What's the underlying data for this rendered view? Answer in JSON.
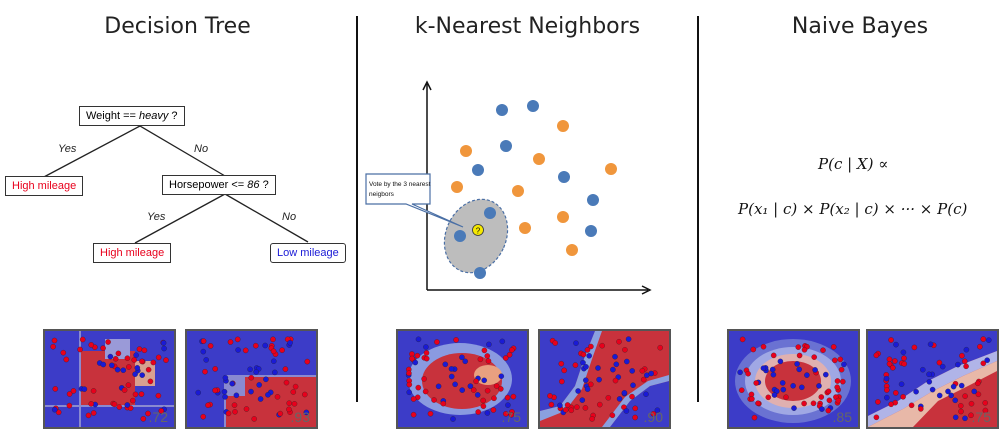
{
  "columns": {
    "tree": {
      "title": "Decision Tree"
    },
    "knn": {
      "title": "k-Nearest Neighbors"
    },
    "bayes": {
      "title": "Naive Bayes"
    }
  },
  "decision_tree": {
    "root": "Weight == ",
    "root_italic": "heavy",
    "root_suffix": " ?",
    "yes_label_1": "Yes",
    "no_label_1": "No",
    "leaf_left": "High mileage",
    "node2": "Horsepower <= ",
    "node2_italic": "86",
    "node2_suffix": " ?",
    "yes_label_2": "Yes",
    "no_label_2": "No",
    "leaf_mid": "High mileage",
    "leaf_right": "Low mileage"
  },
  "knn": {
    "callout": [
      "Vote by the 3 nearest",
      "neigbors"
    ],
    "query_mark": "?"
  },
  "bayes": {
    "line1": "P(c | X) ∝",
    "line2": "P(x₁ | c) × P(x₂ | c) × ··· × P(c)"
  },
  "scores": {
    "tree_a": ".72",
    "tree_b": ".93",
    "knn_a": ".75",
    "knn_b": ".90",
    "bayes_a": ".85",
    "bayes_b": ".75"
  },
  "colors": {
    "class_red": "#e8001c",
    "class_blue": "#1a1ad6",
    "region_red": "#c8323c",
    "region_blue": "#3c3cc8",
    "knn_blue": "#4a7ab8",
    "knn_orange": "#f0963c"
  }
}
